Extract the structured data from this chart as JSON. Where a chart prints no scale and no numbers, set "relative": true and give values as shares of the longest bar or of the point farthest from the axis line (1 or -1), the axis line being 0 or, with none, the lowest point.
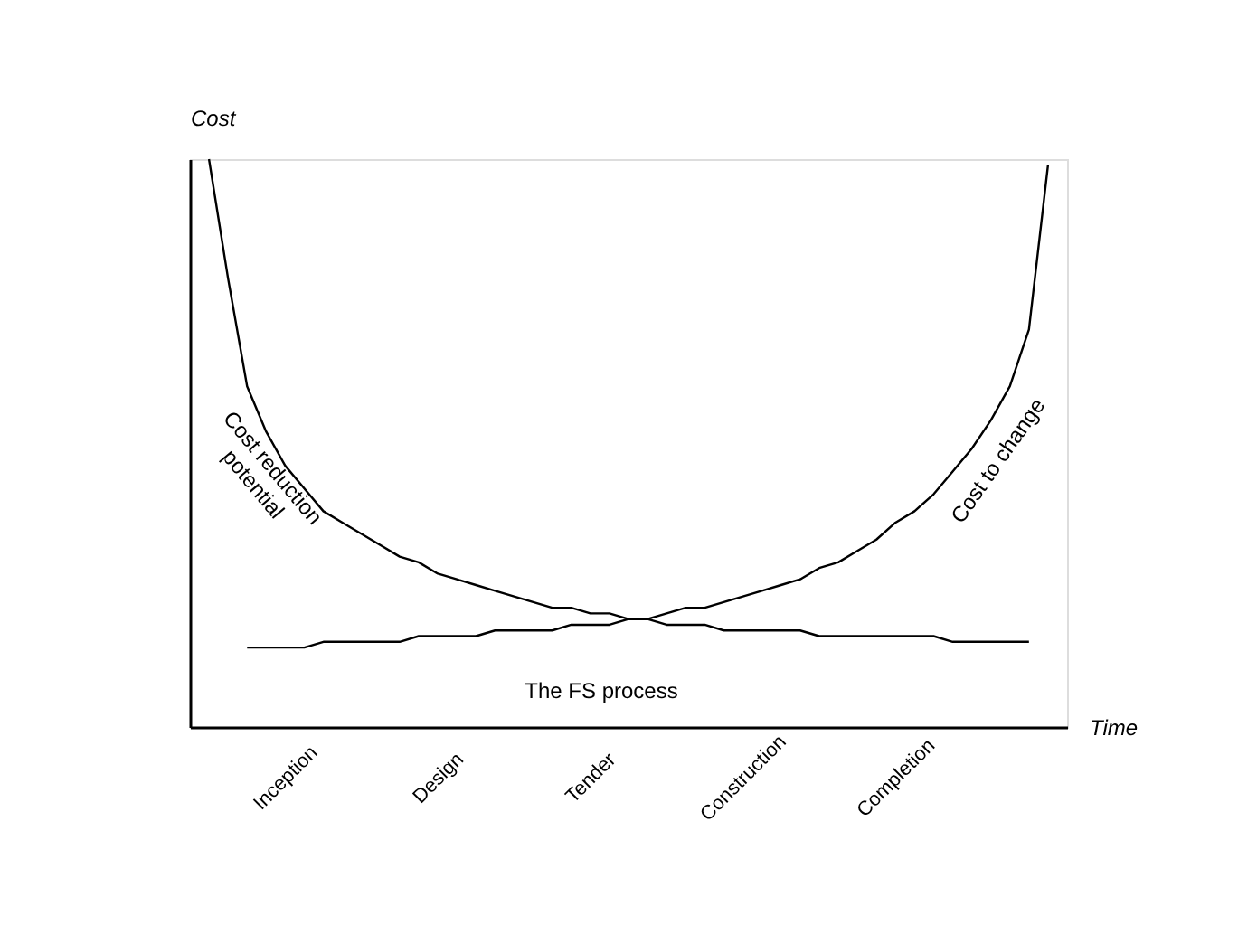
{
  "chart_data": {
    "type": "line",
    "relative": true,
    "xlabel": "Time",
    "ylabel": "Cost",
    "categories": [
      null,
      null,
      null,
      null,
      "Inception",
      null,
      null,
      null,
      null,
      null,
      null,
      null,
      "Design",
      null,
      null,
      null,
      null,
      null,
      null,
      null,
      "Tender",
      null,
      null,
      null,
      null,
      null,
      null,
      null,
      "Construction",
      null,
      null,
      null,
      null,
      null,
      null,
      null,
      "Completion",
      null,
      null,
      null,
      null,
      null,
      null,
      null,
      null
    ],
    "tick_labels": "x",
    "grid": false,
    "legend": false,
    "marker": "none",
    "line_style": "solid",
    "series": [
      {
        "name": "Cost reduction potential",
        "color": "#000000",
        "values": [
          1.0,
          0.79,
          0.6,
          0.52,
          0.46,
          0.42,
          0.38,
          0.36,
          0.34,
          0.32,
          0.3,
          0.29,
          0.27,
          0.26,
          0.25,
          0.24,
          0.23,
          0.22,
          0.21,
          0.21,
          0.2,
          0.2,
          0.19,
          0.19,
          0.18,
          0.18,
          0.18,
          0.17,
          0.17,
          0.17,
          0.17,
          0.17,
          0.16,
          0.16,
          0.16,
          0.16,
          0.16,
          0.16,
          0.16,
          0.15,
          0.15,
          0.15,
          0.15,
          0.15,
          null
        ]
      },
      {
        "name": "Cost to change",
        "color": "#000000",
        "values": [
          null,
          null,
          0.14,
          0.14,
          0.14,
          0.14,
          0.15,
          0.15,
          0.15,
          0.15,
          0.15,
          0.16,
          0.16,
          0.16,
          0.16,
          0.17,
          0.17,
          0.17,
          0.17,
          0.18,
          0.18,
          0.18,
          0.19,
          0.19,
          0.2,
          0.21,
          0.21,
          0.22,
          0.23,
          0.24,
          0.25,
          0.26,
          0.28,
          0.29,
          0.31,
          0.33,
          0.36,
          0.38,
          0.41,
          0.45,
          0.49,
          0.54,
          0.6,
          0.7,
          0.99
        ]
      }
    ],
    "annotations": [
      "The FS process"
    ]
  }
}
